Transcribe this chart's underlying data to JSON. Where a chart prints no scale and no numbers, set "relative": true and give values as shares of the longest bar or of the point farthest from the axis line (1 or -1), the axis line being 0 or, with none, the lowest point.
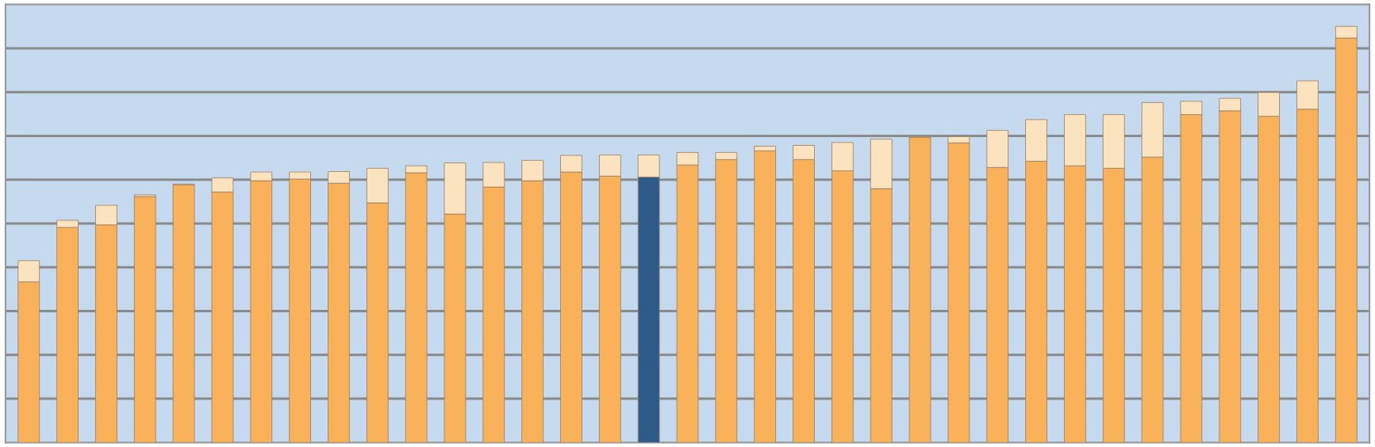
{
  "chart_data": {
    "type": "bar",
    "stacked": true,
    "relative": true,
    "grid": "y",
    "legend": false,
    "categories": [
      null,
      null,
      null,
      null,
      null,
      null,
      null,
      null,
      null,
      null,
      null,
      null,
      null,
      null,
      null,
      null,
      null,
      null,
      null,
      null,
      null,
      null,
      null,
      null,
      null,
      null,
      null,
      null,
      null,
      null,
      null,
      null,
      null,
      null,
      null
    ],
    "series": [
      {
        "color": "#f9b25a",
        "colors": [
          "#f9b25a",
          "#f9b25a",
          "#f9b25a",
          "#f9b25a",
          "#f9b25a",
          "#f9b25a",
          "#f9b25a",
          "#f9b25a",
          "#f9b25a",
          "#f9b25a",
          "#f9b25a",
          "#f9b25a",
          "#f9b25a",
          "#f9b25a",
          "#f9b25a",
          "#f9b25a",
          "#2e5a8a",
          "#f9b25a",
          "#f9b25a",
          "#f9b25a",
          "#f9b25a",
          "#f9b25a",
          "#f9b25a",
          "#f9b25a",
          "#f9b25a",
          "#f9b25a",
          "#f9b25a",
          "#f9b25a",
          "#f9b25a",
          "#f9b25a",
          "#f9b25a",
          "#f9b25a",
          "#f9b25a",
          "#f9b25a",
          "#f9b25a"
        ],
        "values": [
          0.386,
          0.517,
          0.523,
          0.591,
          0.619,
          0.602,
          0.629,
          0.633,
          0.623,
          0.576,
          0.648,
          0.549,
          0.614,
          0.629,
          0.65,
          0.64,
          0.638,
          0.667,
          0.68,
          0.701,
          0.68,
          0.653,
          0.61,
          0.733,
          0.72,
          0.661,
          0.676,
          0.665,
          0.659,
          0.686,
          0.788,
          0.797,
          0.784,
          0.801,
          0.972
        ]
      },
      {
        "color": "#fbe3c0",
        "values": [
          0.051,
          0.017,
          0.047,
          0.004,
          0.002,
          0.034,
          0.021,
          0.017,
          0.028,
          0.083,
          0.017,
          0.123,
          0.059,
          0.049,
          0.04,
          0.051,
          0.053,
          0.03,
          0.017,
          0.011,
          0.034,
          0.068,
          0.119,
          0.002,
          0.015,
          0.089,
          0.1,
          0.123,
          0.129,
          0.131,
          0.032,
          0.03,
          0.057,
          0.068,
          0.028
        ]
      }
    ]
  }
}
